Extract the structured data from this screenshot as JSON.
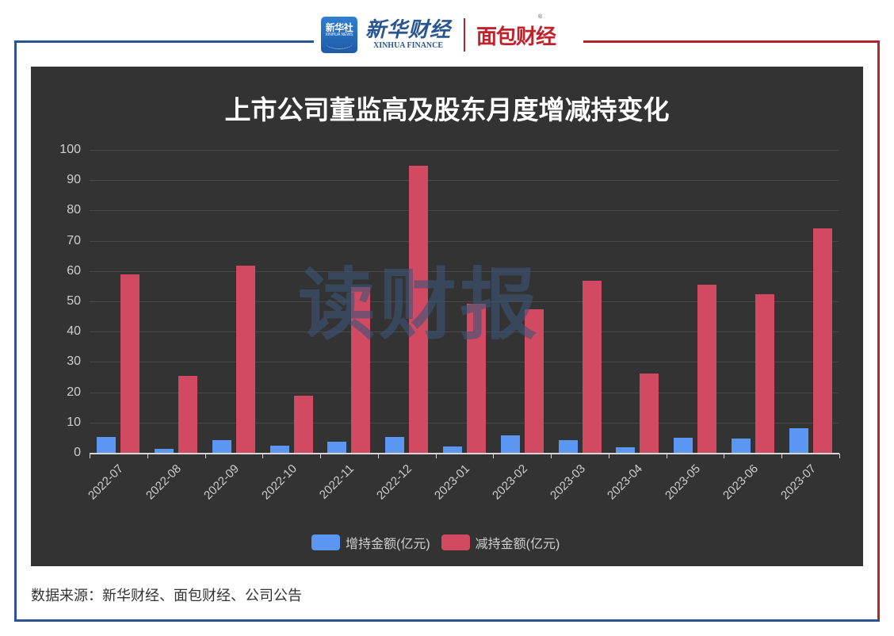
{
  "header": {
    "xinhua_badge_top": "新华社",
    "xinhua_badge_sub": "XINHUA NEWS",
    "xinhua_finance_cn": "新华财经",
    "xinhua_finance_en": "XINHUA FINANCE",
    "mianbao_logo": "面包财经",
    "registered_mark": "®"
  },
  "colors": {
    "frame_blue": "#2a5592",
    "frame_red": "#b3242f",
    "panel_bg": "#333333",
    "increase": "#5b96f2",
    "decrease": "#d14a62"
  },
  "watermark": "读财报",
  "chart_data": {
    "type": "bar",
    "title": "上市公司董监高及股东月度增减持变化",
    "xlabel": "",
    "ylabel": "",
    "ylim": [
      0,
      100
    ],
    "yticks": [
      0,
      10,
      20,
      30,
      40,
      50,
      60,
      70,
      80,
      90,
      100
    ],
    "grid": true,
    "legend_position": "bottom",
    "categories": [
      "2022-07",
      "2022-08",
      "2022-09",
      "2022-10",
      "2022-11",
      "2022-12",
      "2023-01",
      "2023-02",
      "2023-03",
      "2023-04",
      "2023-05",
      "2023-06",
      "2023-07"
    ],
    "series": [
      {
        "name": "增持金额(亿元)",
        "color": "#5b96f2",
        "values": [
          5.2,
          1.4,
          4.2,
          2.4,
          3.6,
          5.2,
          2.1,
          5.8,
          4.3,
          1.8,
          5.1,
          4.8,
          8.0
        ]
      },
      {
        "name": "减持金额(亿元)",
        "color": "#d14a62",
        "values": [
          58.9,
          25.5,
          61.9,
          18.9,
          54.8,
          94.8,
          49.1,
          47.4,
          56.7,
          26.2,
          55.6,
          52.4,
          74.1
        ]
      }
    ]
  },
  "footer": {
    "source": "数据来源：新华财经、面包财经、公司公告"
  }
}
